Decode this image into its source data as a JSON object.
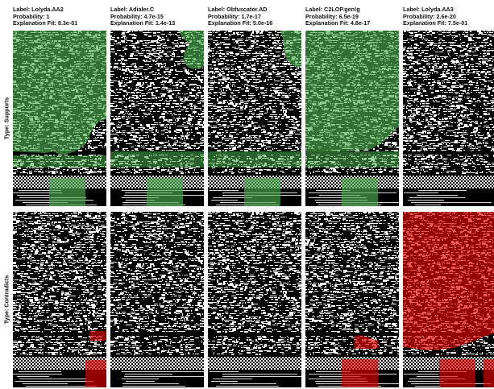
{
  "columns": [
    {
      "label": "Label: Lolyda.AA2",
      "probability": "Probability: 1",
      "fit": "Explanation Fit: 8.3e-01"
    },
    {
      "label": "Label: Adialer.C",
      "probability": "Probability: 4.7e-15",
      "fit": "Explanation Fit: 1.4e-13"
    },
    {
      "label": "Label: Obfuscator.AD",
      "probability": "Probability: 1.7e-17",
      "fit": "Explanation Fit: 5.0e-16"
    },
    {
      "label": "Label: C2LOP.gen!g",
      "probability": "Probability: 6.5e-19",
      "fit": "Explanation Fit: 4.8e-17"
    },
    {
      "label": "Label: Lolyda.AA3",
      "probability": "Probability: 2.6e-20",
      "fit": "Explanation Fit: 7.5e-01"
    }
  ],
  "rows": [
    {
      "label": "Type: Supports",
      "color": "#4caf50"
    },
    {
      "label": "Type: Contradicts",
      "color": "#e00000"
    }
  ]
}
